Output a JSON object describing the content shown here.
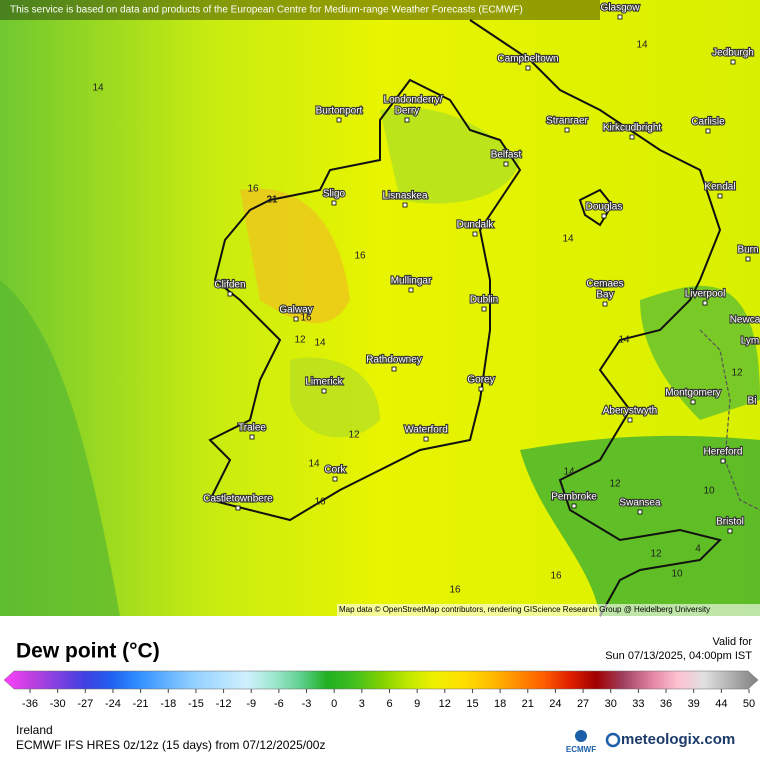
{
  "header": {
    "notice": "This service is based on data and products of the European Centre for Medium-range Weather Forecasts (ECMWF)"
  },
  "map": {
    "places": [
      "Glasgow",
      "Campbeltown",
      "Jedburgh",
      "Burtonport",
      "Londonderry/",
      "Derry",
      "Stranraer",
      "Kirkcudbright",
      "Carlisle",
      "Belfast",
      "Kendal",
      "Sligo",
      "Lisnaskea",
      "Douglas",
      "Dundalk",
      "Burn",
      "Clifden",
      "Mullingar",
      "Cemaes",
      "Bay",
      "Dublin",
      "Liverpool",
      "Galway",
      "Newca",
      "Lym",
      "Rathdowney",
      "Limerick",
      "Gorey",
      "Montgomery",
      "Bi",
      "Aberystwyth",
      "Tralee",
      "Waterford",
      "Hereford",
      "Cork",
      "Pembroke",
      "Castletownbere",
      "Swansea",
      "Bristol"
    ],
    "contour_labels": [
      14,
      14,
      16,
      21,
      16,
      14,
      16,
      12,
      14,
      14,
      12,
      12,
      14,
      16,
      14,
      12,
      10,
      12,
      10,
      16,
      16,
      4
    ],
    "attribution": "Map data © OpenStreetMap contributors, rendering GIScience Research Group @ Heidelberg University"
  },
  "legend": {
    "title": "Dew point (°C)",
    "valid_label": "Valid for",
    "valid_time": "Sun 07/13/2025, 04:00pm IST",
    "colorbar": {
      "ticks": [
        -36,
        -30,
        -27,
        -24,
        -21,
        -18,
        -15,
        -12,
        -9,
        -6,
        -3,
        0,
        3,
        6,
        9,
        12,
        15,
        18,
        21,
        24,
        27,
        30,
        33,
        36,
        39,
        44,
        50
      ],
      "colors": [
        "#ff40ff",
        "#c040e0",
        "#8040e0",
        "#4040e0",
        "#2060f0",
        "#3090ff",
        "#60b0ff",
        "#90d0ff",
        "#b0e0ff",
        "#d0f0ff",
        "#a0e8d0",
        "#60d090",
        "#20b020",
        "#40c020",
        "#80d000",
        "#c0e800",
        "#f0f000",
        "#ffe000",
        "#ffc000",
        "#ff9000",
        "#ff6000",
        "#e02000",
        "#a00000",
        "#a04060",
        "#e080a0",
        "#ffc0d0",
        "#e0e0e0",
        "#b0b0b0",
        "#808080"
      ]
    }
  },
  "footer": {
    "region": "Ireland",
    "model": "ECMWF IFS HRES 0z/12z (15 days) from  07/12/2025/00z",
    "ecmwf": "ECMWF",
    "brand": "meteologix.com"
  }
}
